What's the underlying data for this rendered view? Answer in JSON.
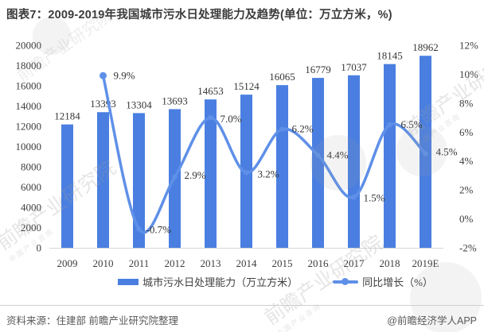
{
  "title": "图表7：2009-2019年我国城市污水日处理能力及趋势(单位：万立方米，%)",
  "footer": {
    "source": "资料来源：住建部 前瞻产业研究院整理",
    "credit": "@前瞻经济学人APP"
  },
  "watermark": {
    "text": "前瞻产业研究院",
    "subtext": "中国产业咨询"
  },
  "chart_data": {
    "type": "combo",
    "title": "图表7：2009-2019年我国城市污水日处理能力及趋势(单位：万立方米，%)",
    "categories": [
      "2009",
      "2010",
      "2011",
      "2012",
      "2013",
      "2014",
      "2015",
      "2016",
      "2017",
      "2018",
      "2019E"
    ],
    "series": [
      {
        "name": "城市污水日处理能力（万立方米）",
        "type": "bar",
        "color": "#4a7fe1",
        "values": [
          12184,
          13393,
          13304,
          13693,
          14653,
          15124,
          16065,
          16779,
          17037,
          18145,
          18962
        ]
      },
      {
        "name": "同比增长（%）",
        "type": "line",
        "color": "#5f90e8",
        "values": [
          null,
          9.9,
          -0.7,
          2.9,
          7.0,
          3.2,
          6.2,
          4.4,
          1.5,
          6.5,
          4.5
        ],
        "point_labels": [
          "",
          "9.9%",
          "-0.7%",
          "2.9%",
          "7.0%",
          "3.2%",
          "6.2%",
          "4.4%",
          "1.5%",
          "6.5%",
          "4.5%"
        ]
      }
    ],
    "axes": {
      "left": {
        "min": 0,
        "max": 20000,
        "step": 2000
      },
      "right": {
        "min": -2,
        "max": 12,
        "step": 2,
        "suffix": "%"
      }
    },
    "grid": false,
    "legend_position": "bottom"
  }
}
